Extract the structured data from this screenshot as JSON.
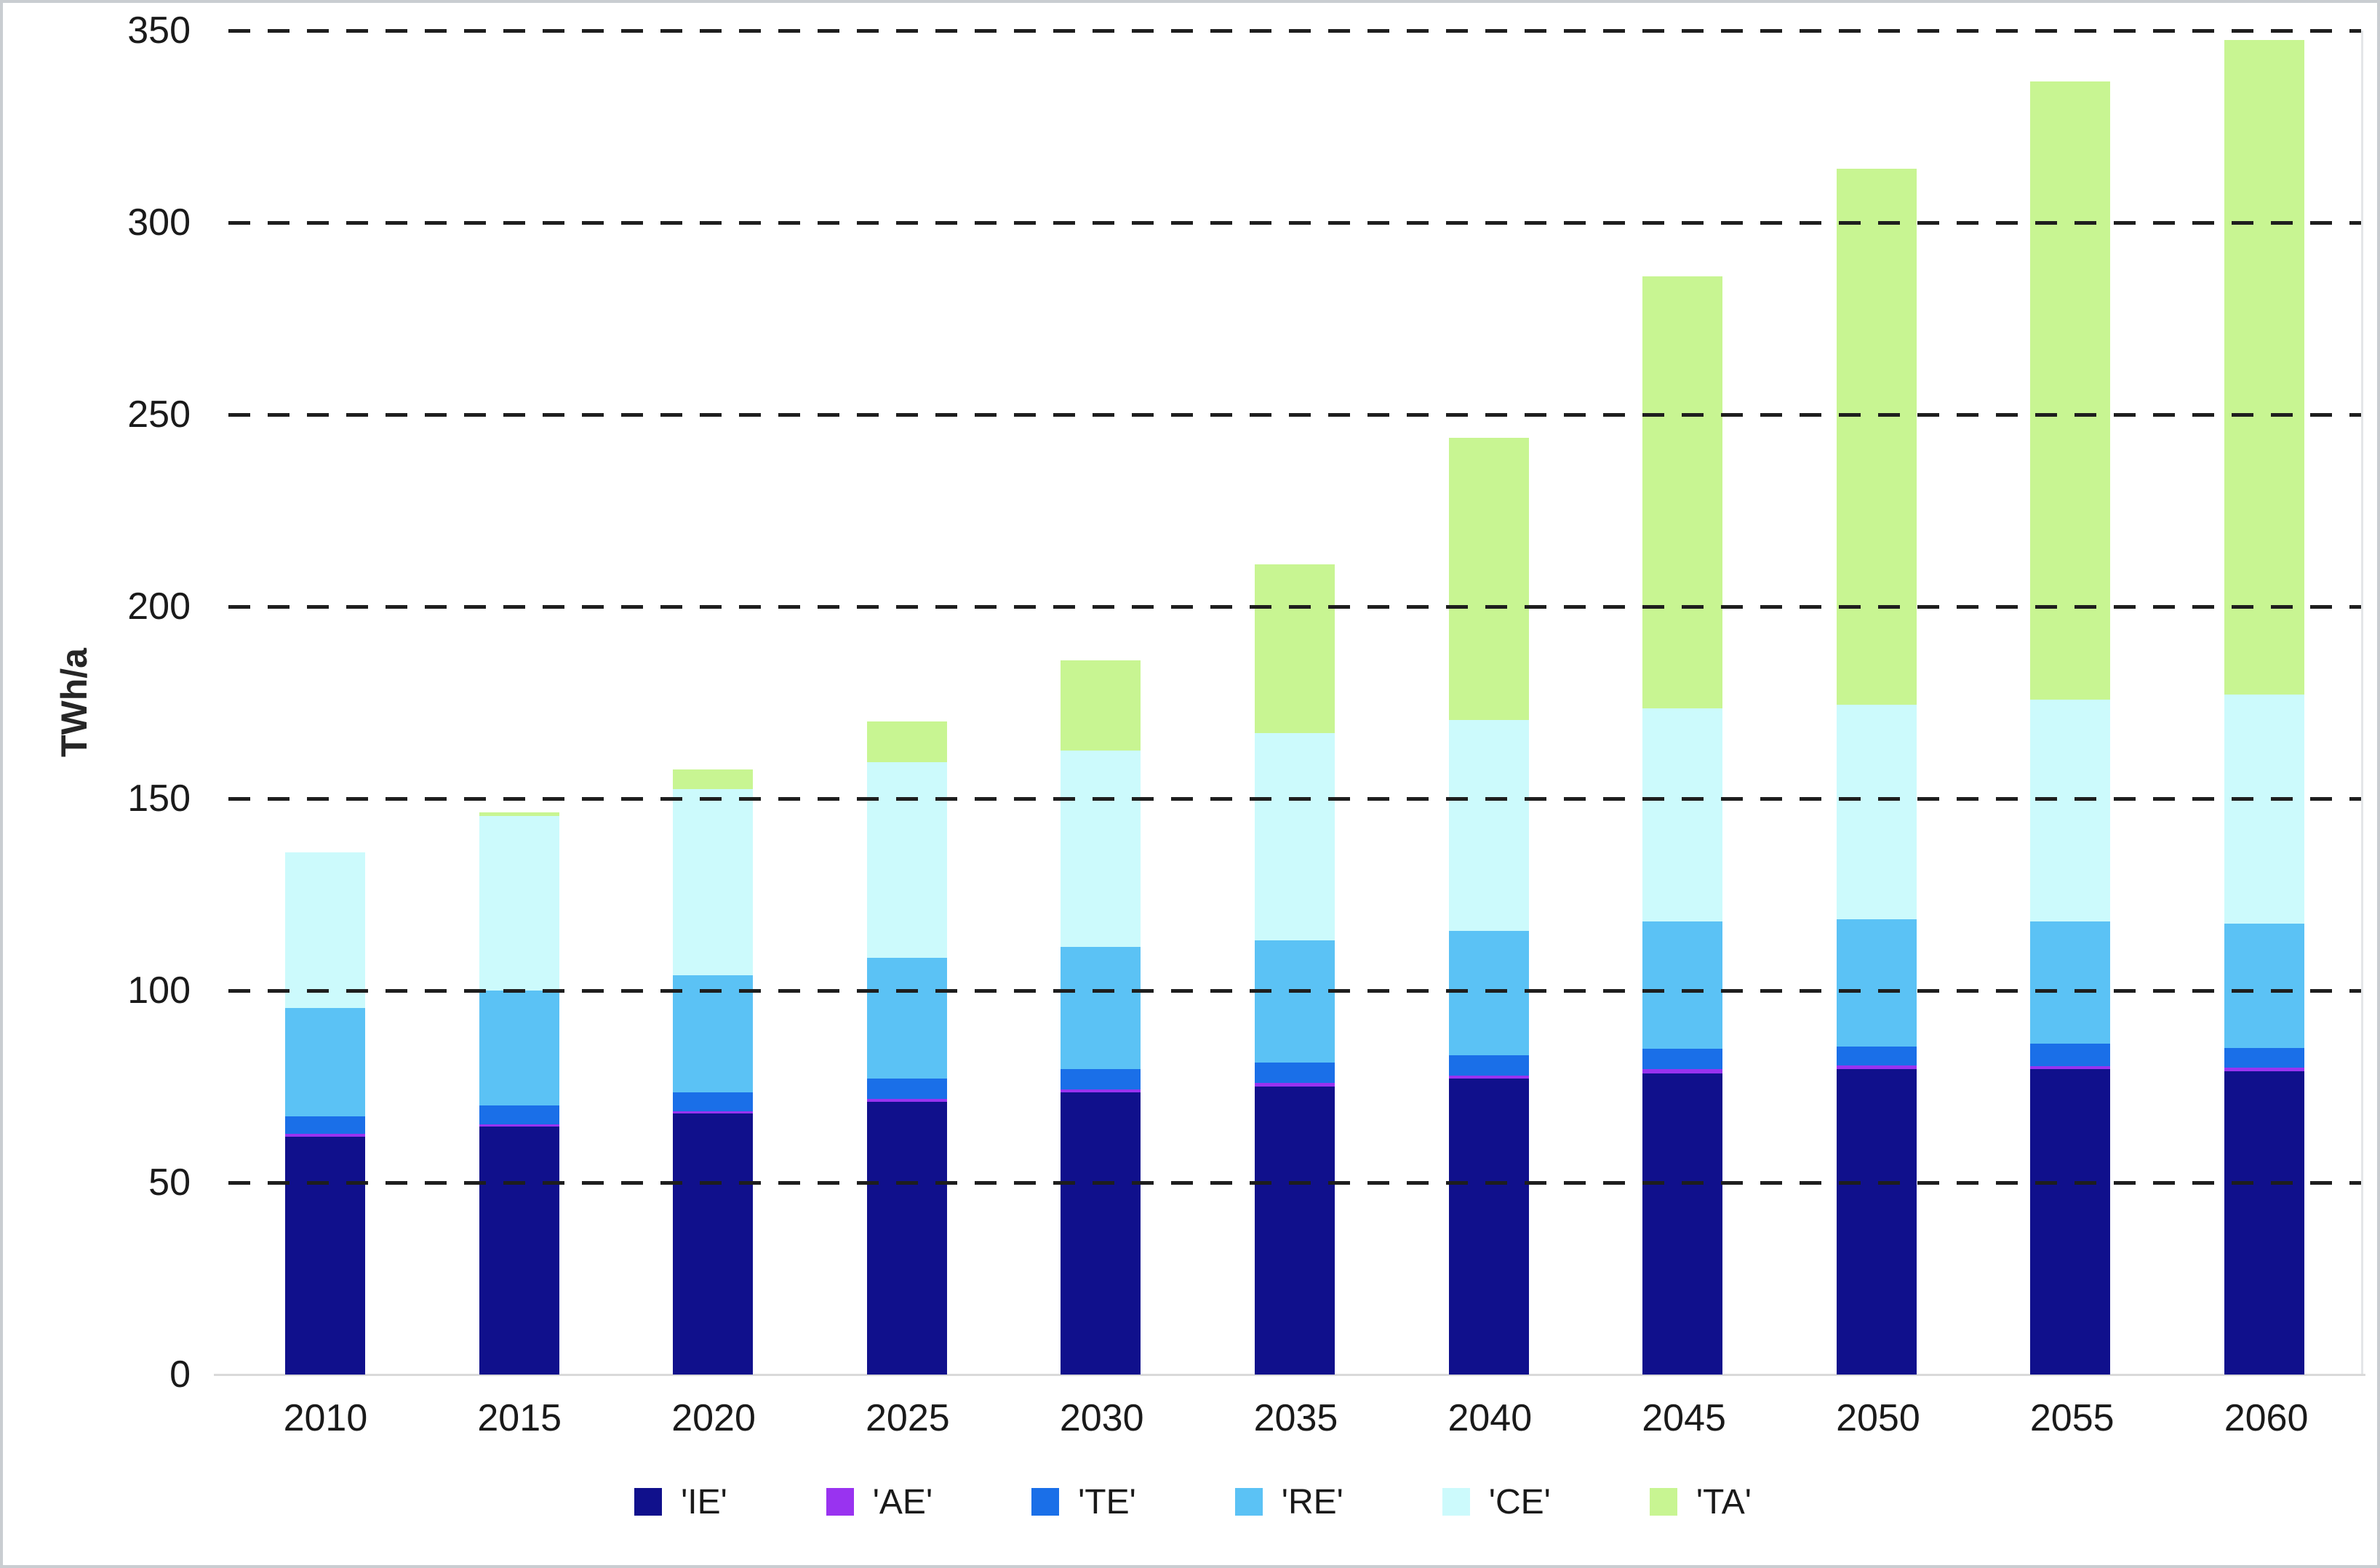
{
  "figure": {
    "background_color": "#ffffff",
    "border_color": "#c9cdd1",
    "gridline_color": "#1e1e1e",
    "axis_line_color": "#d9d9d9",
    "text_color": "#1a1a1a"
  },
  "chart_data": {
    "type": "bar",
    "stacked": true,
    "title": "",
    "xlabel": "",
    "ylabel": "TWh/a",
    "ylim": [
      0,
      350
    ],
    "yticks": [
      0,
      50,
      100,
      150,
      200,
      250,
      300,
      350
    ],
    "grid": "horizontal dashed",
    "legend_position": "bottom",
    "categories": [
      "2010",
      "2015",
      "2020",
      "2025",
      "2030",
      "2035",
      "2040",
      "2045",
      "2050",
      "2055",
      "2060"
    ],
    "series": [
      {
        "name": "'IE'",
        "color": "#10108C",
        "values": [
          62,
          64.5,
          68,
          71,
          73.5,
          75,
          77,
          78.5,
          79.5,
          79.5,
          79
        ]
      },
      {
        "name": "'AE'",
        "color": "#9933F0",
        "values": [
          0.7,
          0.6,
          0.6,
          0.7,
          0.8,
          0.9,
          0.9,
          1,
          1,
          0.9,
          1
        ]
      },
      {
        "name": "'TE'",
        "color": "#1A6FE8",
        "values": [
          4.5,
          4.9,
          4.8,
          5.3,
          5.2,
          5.3,
          5.2,
          5.4,
          5,
          5.8,
          5
        ]
      },
      {
        "name": "'RE'",
        "color": "#5BC2F5",
        "values": [
          28.3,
          30,
          30.6,
          31.5,
          31.8,
          31.8,
          32.4,
          33.1,
          33,
          31.8,
          32.5
        ]
      },
      {
        "name": "'CE'",
        "color": "#CCFAFC",
        "values": [
          40.5,
          45.5,
          48.5,
          51,
          51.2,
          54,
          55,
          55.5,
          56,
          57.7,
          59.5
        ]
      },
      {
        "name": "'TA'",
        "color": "#C8F592",
        "values": [
          0,
          1,
          5,
          10.5,
          23.5,
          44,
          73.5,
          112.5,
          139.5,
          161,
          170.5
        ]
      }
    ],
    "totals": [
      136,
      146.5,
      157.5,
      170,
      186,
      211,
      244,
      286,
      314,
      336.7,
      347.5
    ]
  }
}
